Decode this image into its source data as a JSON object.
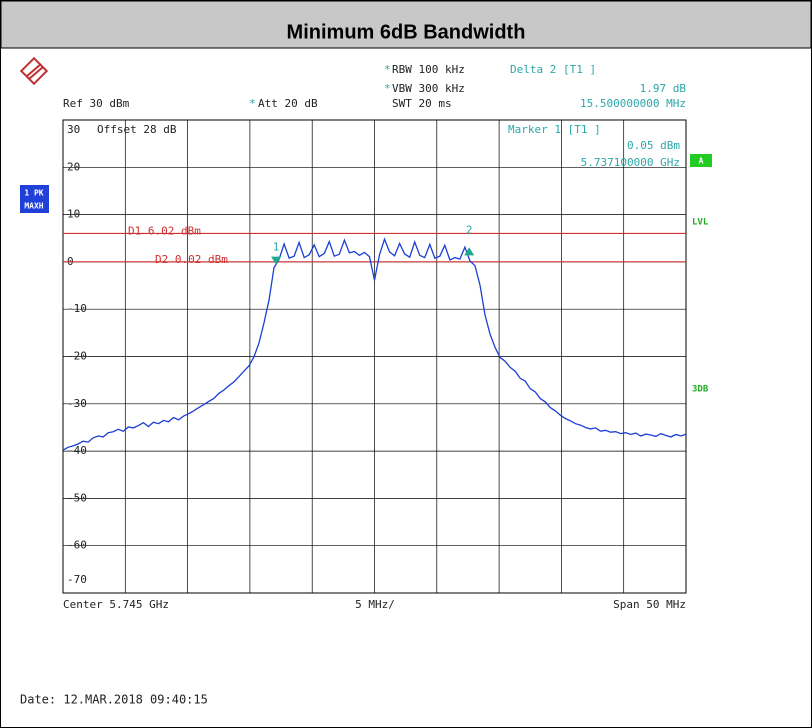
{
  "chart_data": {
    "type": "line",
    "title": "Minimum 6dB Bandwidth",
    "ylim": [
      -70,
      30
    ],
    "yticks": [
      30,
      20,
      10,
      0,
      -10,
      -20,
      -30,
      -40,
      -50,
      -60,
      -70
    ],
    "xlim": [
      5.72,
      5.77
    ],
    "grid": true,
    "series": [
      {
        "name": "1 PK MAXH",
        "color": "#1c3fd4",
        "values": [
          -39.8,
          -39.2,
          -38.9,
          -38.5,
          -37.9,
          -38.1,
          -37.2,
          -36.8,
          -37.0,
          -36.1,
          -35.9,
          -35.4,
          -35.8,
          -34.9,
          -35.1,
          -34.6,
          -34.0,
          -34.8,
          -33.9,
          -34.2,
          -33.5,
          -33.8,
          -32.9,
          -33.4,
          -32.6,
          -32.1,
          -31.5,
          -30.8,
          -30.2,
          -29.5,
          -28.9,
          -27.8,
          -27.1,
          -26.2,
          -25.4,
          -24.3,
          -23.1,
          -22.0,
          -20.1,
          -17.2,
          -12.9,
          -8.1,
          -1.2,
          0.5,
          3.8,
          0.8,
          1.2,
          4.1,
          0.9,
          1.5,
          3.6,
          1.1,
          1.8,
          4.3,
          1.2,
          1.6,
          4.6,
          1.9,
          2.2,
          1.4,
          2.0,
          1.1,
          -3.9,
          1.5,
          4.8,
          2.1,
          1.3,
          3.9,
          1.7,
          1.0,
          4.2,
          1.4,
          0.9,
          3.7,
          0.8,
          1.2,
          3.5,
          0.4,
          0.9,
          0.6,
          3.1,
          0.2,
          -0.8,
          -4.9,
          -11.2,
          -15.3,
          -18.1,
          -20.2,
          -21.0,
          -22.3,
          -23.1,
          -24.6,
          -25.2,
          -26.8,
          -27.5,
          -28.9,
          -29.6,
          -30.8,
          -31.5,
          -32.4,
          -33.1,
          -33.6,
          -34.2,
          -34.5,
          -35.0,
          -35.3,
          -35.1,
          -35.8,
          -35.6,
          -36.0,
          -35.9,
          -36.3,
          -36.1,
          -36.5,
          -36.2,
          -36.8,
          -36.4,
          -36.6,
          -36.9,
          -36.3,
          -36.7,
          -37.0,
          -36.5,
          -36.8,
          -36.4
        ]
      }
    ],
    "lines": [
      {
        "label": "D1 6.02 dBm",
        "value": 6.02,
        "color": "#d03030"
      },
      {
        "label": "D2 0.02 dBm",
        "value": 0.02,
        "color": "#d03030"
      }
    ],
    "markers": [
      {
        "label": "1",
        "x": 5.7371,
        "y": 0.05
      },
      {
        "label": "2",
        "x": 5.7526,
        "y": 2.02
      }
    ],
    "settings": {
      "rbw": "RBW 100 kHz",
      "vbw": "VBW 300 kHz",
      "swt": "SWT 20 ms",
      "ref": "Ref 30 dBm",
      "att": "Att 20 dB",
      "offset": "Offset 28 dB"
    },
    "readout": {
      "delta": "Delta 2 [T1 ]",
      "delta_level": "1.97 dB",
      "delta_freq": "15.500000000 MHz",
      "marker": "Marker 1 [T1 ]",
      "marker_level": "0.05 dBm",
      "marker_freq": "5.737100000 GHz"
    },
    "side": {
      "trace": [
        "1 PK",
        "MAXH"
      ],
      "a": "A",
      "lvl": "LVL",
      "db3": "3DB"
    },
    "bottom": {
      "center": "Center 5.745 GHz",
      "div": "5 MHz/",
      "span": "Span 50 MHz"
    },
    "date": "Date: 12.MAR.2018  09:40:15"
  }
}
